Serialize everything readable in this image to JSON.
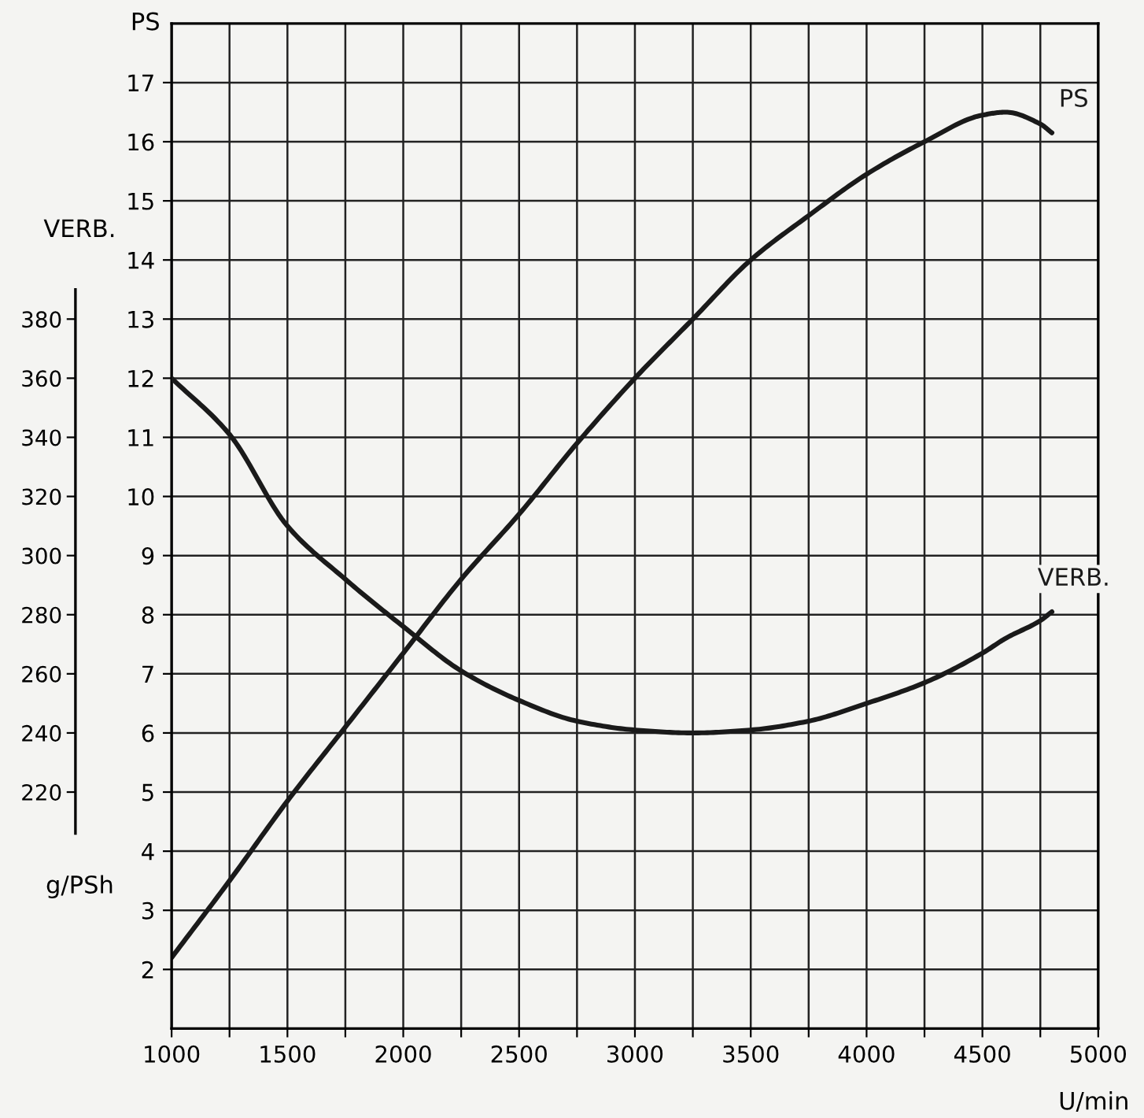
{
  "chart_data": {
    "type": "line",
    "xlabel": "U/min",
    "ylabel": "PS",
    "y2label": "VERB.",
    "x": [
      1000,
      1250,
      1500,
      1750,
      2000,
      2250,
      2500,
      2750,
      3000,
      3250,
      3500,
      3750,
      4000,
      4250,
      4500,
      4600,
      4750,
      4800
    ],
    "series": [
      {
        "name": "PS",
        "color": "#1a1a1a",
        "values": [
          2.2,
          3.5,
          4.85,
          6.1,
          7.35,
          8.6,
          9.7,
          10.9,
          12.0,
          13.0,
          14.0,
          14.75,
          15.45,
          16.0,
          16.45,
          16.5,
          16.3,
          16.15
        ]
      },
      {
        "name": "VERB.",
        "color": "#1a1a1a",
        "axis": "y2",
        "values": [
          360,
          341,
          310,
          292,
          276,
          261,
          251,
          244,
          241,
          240,
          241,
          244,
          250,
          257,
          267,
          272,
          278,
          281
        ]
      }
    ],
    "xlim": [
      1000,
      5000
    ],
    "xticks": [
      1000,
      {
        "value": 1250,
        "label": null
      },
      1500,
      {
        "value": 1750,
        "label": null
      },
      2000,
      {
        "value": 2250,
        "label": null
      },
      2500,
      {
        "value": 2750,
        "label": null
      },
      3000,
      {
        "value": 3250,
        "label": null
      },
      3500,
      {
        "value": 3750,
        "label": null
      },
      4000,
      {
        "value": 4250,
        "label": null
      },
      4500,
      {
        "value": 4750,
        "label": null
      },
      5000
    ],
    "ylim": [
      1,
      18
    ],
    "yticks": [
      2,
      3,
      4,
      5,
      6,
      7,
      8,
      9,
      10,
      11,
      12,
      13,
      14,
      15,
      16,
      17
    ],
    "y2lim": [
      140,
      480
    ],
    "y2ticks": [
      220,
      240,
      260,
      280,
      300,
      320,
      340,
      360,
      380
    ],
    "annotations": [
      "g/PSh"
    ],
    "grid": true,
    "marker": "none",
    "line_style": "solid"
  }
}
